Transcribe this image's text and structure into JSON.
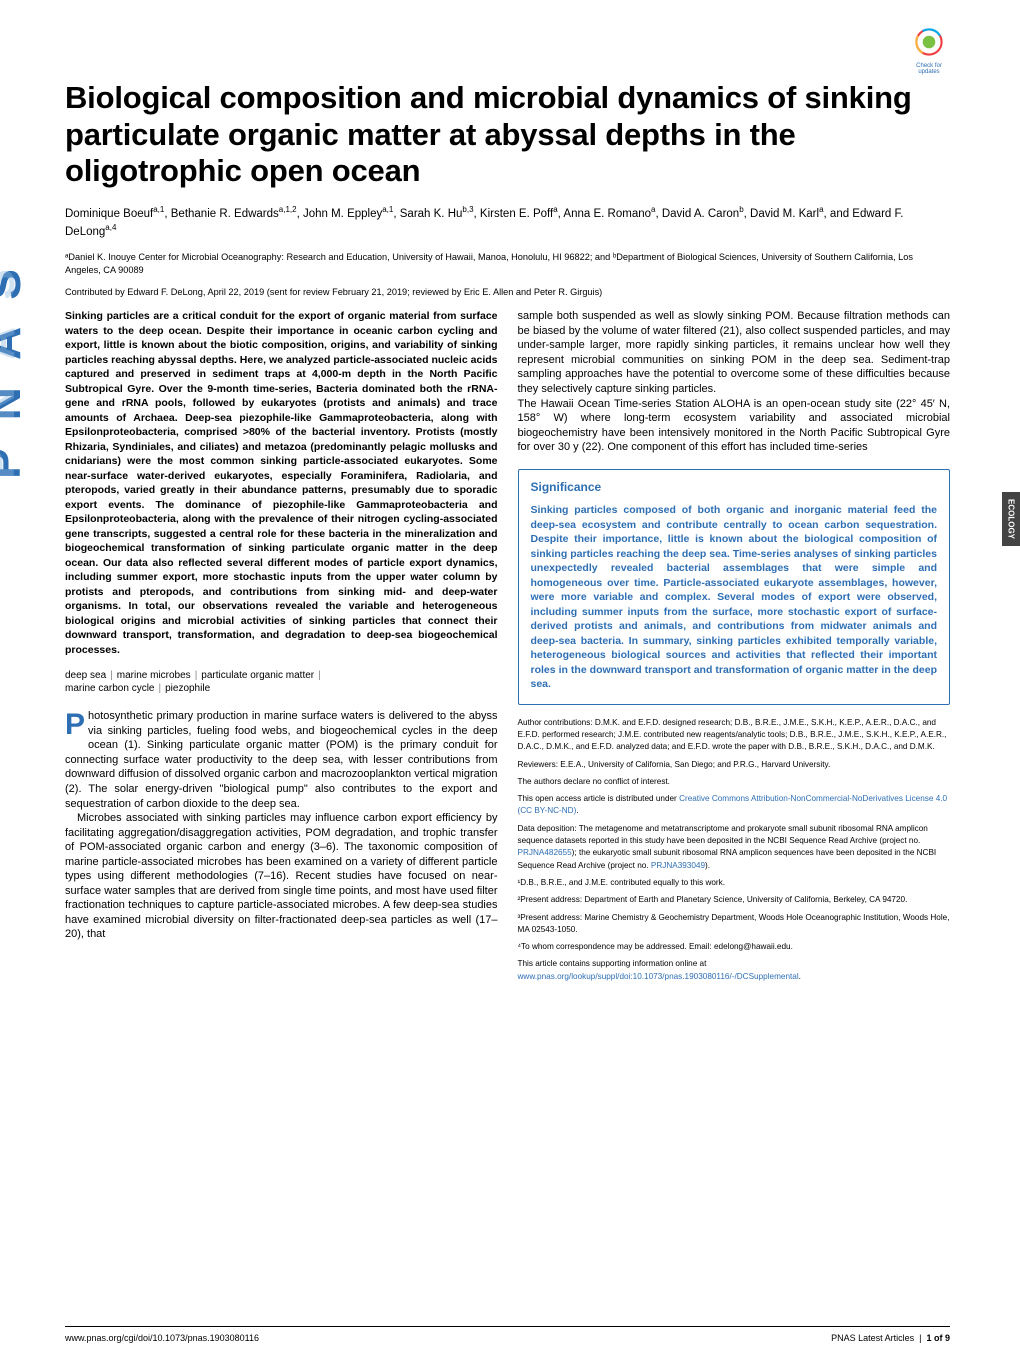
{
  "colors": {
    "link": "#2e6fb4",
    "text": "#000000",
    "background": "#ffffff",
    "sidebar_dark": "#444444"
  },
  "badge": {
    "label": "Check for updates"
  },
  "side_tab": "ECOLOGY",
  "title": "Biological composition and microbial dynamics of sinking particulate organic matter at abyssal depths in the oligotrophic open ocean",
  "authors_html": "Dominique Boeuf<sup>a,1</sup>, Bethanie R. Edwards<sup>a,1,2</sup>, John M. Eppley<sup>a,1</sup>, Sarah K. Hu<sup>b,3</sup>, Kirsten E. Poff<sup>a</sup>, Anna E. Romano<sup>a</sup>, David A. Caron<sup>b</sup>, David M. Karl<sup>a</sup>, and Edward F. DeLong<sup>a,4</sup>",
  "affiliations": "ᵃDaniel K. Inouye Center for Microbial Oceanography: Research and Education, University of Hawaii, Manoa, Honolulu, HI 96822; and ᵇDepartment of Biological Sciences, University of Southern California, Los Angeles, CA 90089",
  "contributed": "Contributed by Edward F. DeLong, April 22, 2019 (sent for review February 21, 2019; reviewed by Eric E. Allen and Peter R. Girguis)",
  "abstract": "Sinking particles are a critical conduit for the export of organic material from surface waters to the deep ocean. Despite their importance in oceanic carbon cycling and export, little is known about the biotic composition, origins, and variability of sinking particles reaching abyssal depths. Here, we analyzed particle-associated nucleic acids captured and preserved in sediment traps at 4,000-m depth in the North Pacific Subtropical Gyre. Over the 9-month time-series, Bacteria dominated both the rRNA-gene and rRNA pools, followed by eukaryotes (protists and animals) and trace amounts of Archaea. Deep-sea piezophile-like Gammaproteobacteria, along with Epsilonproteobacteria, comprised >80% of the bacterial inventory. Protists (mostly Rhizaria, Syndiniales, and ciliates) and metazoa (predominantly pelagic mollusks and cnidarians) were the most common sinking particle-associated eukaryotes. Some near-surface water-derived eukaryotes, especially Foraminifera, Radiolaria, and pteropods, varied greatly in their abundance patterns, presumably due to sporadic export events. The dominance of piezophile-like Gammaproteobacteria and Epsilonproteobacteria, along with the prevalence of their nitrogen cycling-associated gene transcripts, suggested a central role for these bacteria in the mineralization and biogeochemical transformation of sinking particulate organic matter in the deep ocean. Our data also reflected several different modes of particle export dynamics, including summer export, more stochastic inputs from the upper water column by protists and pteropods, and contributions from sinking mid- and deep-water organisms. In total, our observations revealed the variable and heterogeneous biological origins and microbial activities of sinking particles that connect their downward transport, transformation, and degradation to deep-sea biogeochemical processes.",
  "keywords": [
    "deep sea",
    "marine microbes",
    "particulate organic matter",
    "marine carbon cycle",
    "piezophile"
  ],
  "body_p1": "hotosynthetic primary production in marine surface waters is delivered to the abyss via sinking particles, fueling food webs, and biogeochemical cycles in the deep ocean (1). Sinking particulate organic matter (POM) is the primary conduit for connecting surface water productivity to the deep sea, with lesser contributions from downward diffusion of dissolved organic carbon and macrozooplankton vertical migration (2). The solar energy-driven \"biological pump\" also contributes to the export and sequestration of carbon dioxide to the deep sea.",
  "body_p2": "Microbes associated with sinking particles may influence carbon export efficiency by facilitating aggregation/disaggregation activities, POM degradation, and trophic transfer of POM-associated organic carbon and energy (3–6). The taxonomic composition of marine particle-associated microbes has been examined on a variety of different particle types using different methodologies (7–16). Recent studies have focused on near-surface water samples that are derived from single time points, and most have used filter fractionation techniques to capture particle-associated microbes. A few deep-sea studies have examined microbial diversity on filter-fractionated deep-sea particles as well (17–20), that",
  "col2_p1": "sample both suspended as well as slowly sinking POM. Because filtration methods can be biased by the volume of water filtered (21), also collect suspended particles, and may under-sample larger, more rapidly sinking particles, it remains unclear how well they represent microbial communities on sinking POM in the deep sea. Sediment-trap sampling approaches have the potential to overcome some of these difficulties because they selectively capture sinking particles.",
  "col2_p2": "The Hawaii Ocean Time-series Station ALOHA is an open-ocean study site (22° 45′ N, 158° W) where long-term ecosystem variability and associated microbial biogeochemistry have been intensively monitored in the North Pacific Subtropical Gyre for over 30 y (22). One component of this effort has included time-series",
  "significance": {
    "heading": "Significance",
    "text": "Sinking particles composed of both organic and inorganic material feed the deep-sea ecosystem and contribute centrally to ocean carbon sequestration. Despite their importance, little is known about the biological composition of sinking particles reaching the deep sea. Time-series analyses of sinking particles unexpectedly revealed bacterial assemblages that were simple and homogeneous over time. Particle-associated eukaryote assemblages, however, were more variable and complex. Several modes of export were observed, including summer inputs from the surface, more stochastic export of surface-derived protists and animals, and contributions from midwater animals and deep-sea bacteria. In summary, sinking particles exhibited temporally variable, heterogeneous biological sources and activities that reflected their important roles in the downward transport and transformation of organic matter in the deep sea."
  },
  "meta": {
    "contributions": "Author contributions: D.M.K. and E.F.D. designed research; D.B., B.R.E., J.M.E., S.K.H., K.E.P., A.E.R., D.A.C., and E.F.D. performed research; J.M.E. contributed new reagents/analytic tools; D.B., B.R.E., J.M.E., S.K.H., K.E.P., A.E.R., D.A.C., D.M.K., and E.F.D. analyzed data; and E.F.D. wrote the paper with D.B., B.R.E., S.K.H., D.A.C., and D.M.K.",
    "reviewers": "Reviewers: E.E.A., University of California, San Diego; and P.R.G., Harvard University.",
    "conflict": "The authors declare no conflict of interest.",
    "license_pre": "This open access article is distributed under ",
    "license_link": "Creative Commons Attribution-NonCommercial-NoDerivatives License 4.0 (CC BY-NC-ND)",
    "license_post": ".",
    "deposition_pre": "Data deposition: The metagenome and metatranscriptome and prokaryote small subunit ribosomal RNA amplicon sequence datasets reported in this study have been deposited in the NCBI Sequence Read Archive (project no. ",
    "deposition_link1": "PRJNA482655",
    "deposition_mid": "); the eukaryotic small subunit ribosomal RNA amplicon sequences have been deposited in the NCBI Sequence Read Archive (project no. ",
    "deposition_link2": "PRJNA393049",
    "deposition_post": ").",
    "note1": "¹D.B., B.R.E., and J.M.E. contributed equally to this work.",
    "note2": "²Present address: Department of Earth and Planetary Science, University of California, Berkeley, CA 94720.",
    "note3": "³Present address: Marine Chemistry & Geochemistry Department, Woods Hole Oceanographic Institution, Woods Hole, MA 02543-1050.",
    "note4": "⁴To whom correspondence may be addressed. Email: edelong@hawaii.edu.",
    "supp_pre": "This article contains supporting information online at ",
    "supp_link": "www.pnas.org/lookup/suppl/doi:10.1073/pnas.1903080116/-/DCSupplemental",
    "supp_post": "."
  },
  "footer": {
    "left": "www.pnas.org/cgi/doi/10.1073/pnas.1903080116",
    "right_label": "PNAS Latest Articles",
    "right_page": "1 of 9"
  }
}
